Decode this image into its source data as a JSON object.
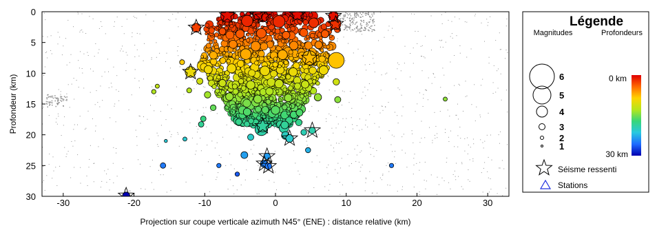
{
  "chart_data": {
    "type": "scatter",
    "xlabel": "Projection sur coupe verticale azimuth N45° (ENE) : distance relative (km)",
    "ylabel": "Profondeur (km)",
    "xlim": [
      -33,
      33
    ],
    "ylim": [
      0,
      30
    ],
    "y_inverted": true,
    "grid": false,
    "x_ticks": [
      -30,
      -20,
      -10,
      0,
      10,
      20,
      30
    ],
    "x_tick_labels": [
      "-30",
      "-20",
      "-10",
      "0",
      "10",
      "20",
      "30"
    ],
    "y_ticks": [
      0,
      5,
      10,
      15,
      20,
      25,
      30
    ],
    "y_tick_labels": [
      "0",
      "5",
      "10",
      "15",
      "20",
      "25",
      "30"
    ],
    "colorscale": {
      "min_depth": 0,
      "max_depth": 30,
      "colors": [
        "#e00000",
        "#ff6a00",
        "#ffd400",
        "#b5e61d",
        "#37d67a",
        "#28c8e0",
        "#1e6bff",
        "#0000b0"
      ]
    },
    "background_color": "#909090",
    "felt_symbol": "star",
    "legend": {
      "position": "right",
      "title": "Légende",
      "col1_label": "Magnitudes",
      "col2_label": "Profondeurs",
      "magnitudes": [
        "6",
        "5",
        "4",
        "3",
        "2",
        "1"
      ],
      "depth_top_label": "0 km",
      "depth_bottom_label": "30 km",
      "felt_label": "Séisme ressenti",
      "stations_label": "Stations"
    },
    "events": [
      {
        "x": -6.8,
        "y": 0.6,
        "mag": 3.6,
        "felt": true
      },
      {
        "x": -2.5,
        "y": 0.5,
        "mag": 3.0,
        "felt": true
      },
      {
        "x": -1.8,
        "y": 0.8,
        "mag": 3.2,
        "felt": true
      },
      {
        "x": 3.1,
        "y": 0.5,
        "mag": 3.1,
        "felt": true
      },
      {
        "x": 8.2,
        "y": 0.7,
        "mag": 3.0,
        "felt": true
      },
      {
        "x": -11.2,
        "y": 2.6,
        "mag": 2.9,
        "felt": true
      },
      {
        "x": -4.0,
        "y": 1.5,
        "mag": 3.3,
        "felt": false
      },
      {
        "x": 0.5,
        "y": 1.6,
        "mag": 3.4,
        "felt": false
      },
      {
        "x": 5.4,
        "y": 1.8,
        "mag": 3.0,
        "felt": false
      },
      {
        "x": 8.5,
        "y": 2.0,
        "mag": 3.2,
        "felt": true
      },
      {
        "x": -7.5,
        "y": 3.2,
        "mag": 2.4,
        "felt": false
      },
      {
        "x": -5.0,
        "y": 3.6,
        "mag": 2.8,
        "felt": false
      },
      {
        "x": -2.0,
        "y": 3.5,
        "mag": 3.0,
        "felt": false
      },
      {
        "x": 1.5,
        "y": 3.8,
        "mag": 2.6,
        "felt": false
      },
      {
        "x": 4.0,
        "y": 3.4,
        "mag": 2.7,
        "felt": false
      },
      {
        "x": 7.0,
        "y": 3.6,
        "mag": 2.6,
        "felt": false
      },
      {
        "x": -6.0,
        "y": 5.3,
        "mag": 2.7,
        "felt": false
      },
      {
        "x": -2.8,
        "y": 5.6,
        "mag": 3.0,
        "felt": false
      },
      {
        "x": 2.6,
        "y": 5.5,
        "mag": 2.8,
        "felt": false
      },
      {
        "x": 6.1,
        "y": 5.4,
        "mag": 2.6,
        "felt": false
      },
      {
        "x": -4.2,
        "y": 6.9,
        "mag": 3.2,
        "felt": false
      },
      {
        "x": 1.0,
        "y": 7.0,
        "mag": 3.0,
        "felt": false
      },
      {
        "x": 4.8,
        "y": 7.5,
        "mag": 3.7,
        "felt": true
      },
      {
        "x": 8.6,
        "y": 7.9,
        "mag": 3.9,
        "felt": false
      },
      {
        "x": -12.0,
        "y": 9.8,
        "mag": 3.2,
        "felt": true
      },
      {
        "x": -9.5,
        "y": 9.4,
        "mag": 2.7,
        "felt": false
      },
      {
        "x": -6.2,
        "y": 9.2,
        "mag": 2.9,
        "felt": false
      },
      {
        "x": -1.5,
        "y": 9.6,
        "mag": 3.0,
        "felt": false
      },
      {
        "x": 2.5,
        "y": 9.8,
        "mag": 2.8,
        "felt": false
      },
      {
        "x": 6.8,
        "y": 9.5,
        "mag": 2.9,
        "felt": false
      },
      {
        "x": -13.2,
        "y": 8.2,
        "mag": 1.8,
        "felt": false
      },
      {
        "x": -10.7,
        "y": 11.3,
        "mag": 2.2,
        "felt": false
      },
      {
        "x": -7.5,
        "y": 11.6,
        "mag": 2.5,
        "felt": false
      },
      {
        "x": -3.5,
        "y": 11.9,
        "mag": 2.8,
        "felt": false
      },
      {
        "x": 0.5,
        "y": 11.7,
        "mag": 2.8,
        "felt": false
      },
      {
        "x": 4.2,
        "y": 11.8,
        "mag": 2.6,
        "felt": false
      },
      {
        "x": 8.6,
        "y": 11.4,
        "mag": 2.3,
        "felt": false
      },
      {
        "x": -16.7,
        "y": 12.1,
        "mag": 1.5,
        "felt": false
      },
      {
        "x": -17.2,
        "y": 13.0,
        "mag": 1.6,
        "felt": false
      },
      {
        "x": -12.2,
        "y": 12.8,
        "mag": 1.8,
        "felt": false
      },
      {
        "x": -9.6,
        "y": 13.5,
        "mag": 2.3,
        "felt": false
      },
      {
        "x": -6.5,
        "y": 13.8,
        "mag": 2.6,
        "felt": false
      },
      {
        "x": -2.5,
        "y": 14.2,
        "mag": 2.7,
        "felt": false
      },
      {
        "x": 1.8,
        "y": 14.0,
        "mag": 2.6,
        "felt": false
      },
      {
        "x": 6.0,
        "y": 13.9,
        "mag": 2.5,
        "felt": false
      },
      {
        "x": 8.8,
        "y": 14.3,
        "mag": 2.2,
        "felt": false
      },
      {
        "x": 24.0,
        "y": 14.2,
        "mag": 1.5,
        "felt": false
      },
      {
        "x": -8.8,
        "y": 15.6,
        "mag": 2.1,
        "felt": false
      },
      {
        "x": -4.0,
        "y": 16.3,
        "mag": 2.6,
        "felt": false
      },
      {
        "x": 0.0,
        "y": 16.0,
        "mag": 2.8,
        "felt": false
      },
      {
        "x": 3.4,
        "y": 16.4,
        "mag": 2.4,
        "felt": false
      },
      {
        "x": -10.2,
        "y": 17.4,
        "mag": 2.0,
        "felt": false
      },
      {
        "x": -5.2,
        "y": 17.9,
        "mag": 2.3,
        "felt": false
      },
      {
        "x": -1.8,
        "y": 18.6,
        "mag": 3.3,
        "felt": true
      },
      {
        "x": 1.3,
        "y": 18.4,
        "mag": 2.6,
        "felt": false
      },
      {
        "x": 3.3,
        "y": 18.0,
        "mag": 2.3,
        "felt": false
      },
      {
        "x": -10.5,
        "y": 18.3,
        "mag": 2.0,
        "felt": false
      },
      {
        "x": -2.0,
        "y": 19.1,
        "mag": 3.5,
        "felt": false
      },
      {
        "x": 1.2,
        "y": 18.9,
        "mag": 3.0,
        "felt": false
      },
      {
        "x": 4.0,
        "y": 19.6,
        "mag": 2.1,
        "felt": false
      },
      {
        "x": 5.2,
        "y": 19.3,
        "mag": 2.3,
        "felt": true
      },
      {
        "x": -12.8,
        "y": 20.7,
        "mag": 1.5,
        "felt": false
      },
      {
        "x": -3.5,
        "y": 20.4,
        "mag": 2.2,
        "felt": false
      },
      {
        "x": 1.4,
        "y": 20.1,
        "mag": 2.6,
        "felt": false
      },
      {
        "x": 2.0,
        "y": 20.6,
        "mag": 2.6,
        "felt": true
      },
      {
        "x": -15.5,
        "y": 21.0,
        "mag": 1.0,
        "felt": false
      },
      {
        "x": 4.6,
        "y": 22.5,
        "mag": 1.9,
        "felt": false
      },
      {
        "x": -4.4,
        "y": 23.3,
        "mag": 2.4,
        "felt": false
      },
      {
        "x": -1.2,
        "y": 23.5,
        "mag": 2.3,
        "felt": true
      },
      {
        "x": -1.6,
        "y": 24.7,
        "mag": 2.5,
        "felt": true
      },
      {
        "x": -1.0,
        "y": 25.1,
        "mag": 2.3,
        "felt": true
      },
      {
        "x": -15.9,
        "y": 25.0,
        "mag": 2.0,
        "felt": false
      },
      {
        "x": -8.0,
        "y": 25.0,
        "mag": 1.6,
        "felt": false
      },
      {
        "x": -5.4,
        "y": 26.4,
        "mag": 1.6,
        "felt": false
      },
      {
        "x": 16.4,
        "y": 25.0,
        "mag": 1.6,
        "felt": false
      },
      {
        "x": -21.1,
        "y": 29.9,
        "mag": 2.5,
        "felt": true
      }
    ]
  }
}
